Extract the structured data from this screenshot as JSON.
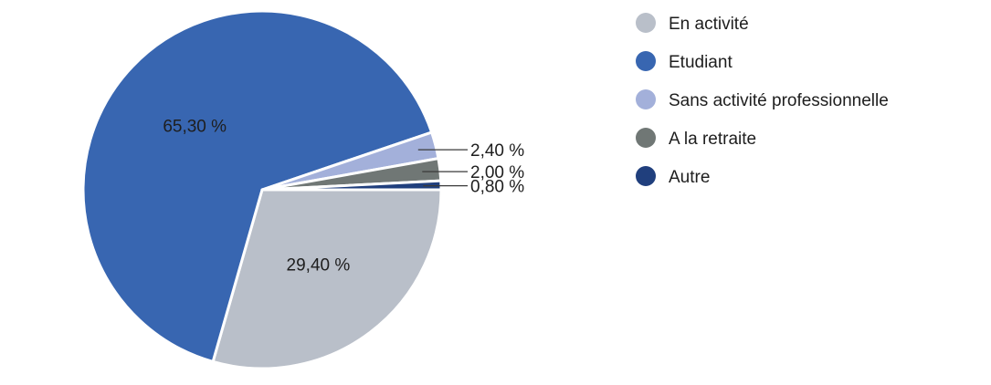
{
  "chart_data": {
    "type": "pie",
    "categories": [
      "En activité",
      "Etudiant",
      "Sans activité professionnelle",
      "A la retraite",
      "Autre"
    ],
    "values": [
      29.4,
      65.3,
      2.4,
      2.0,
      0.8
    ],
    "labels": [
      "29,40 %",
      "65,30 %",
      "2,40 %",
      "2,00 %",
      "0,80 %"
    ],
    "colors": [
      "#b9bfc9",
      "#3866b1",
      "#a3b0da",
      "#707775",
      "#203f7d"
    ],
    "legend_position": "right"
  }
}
